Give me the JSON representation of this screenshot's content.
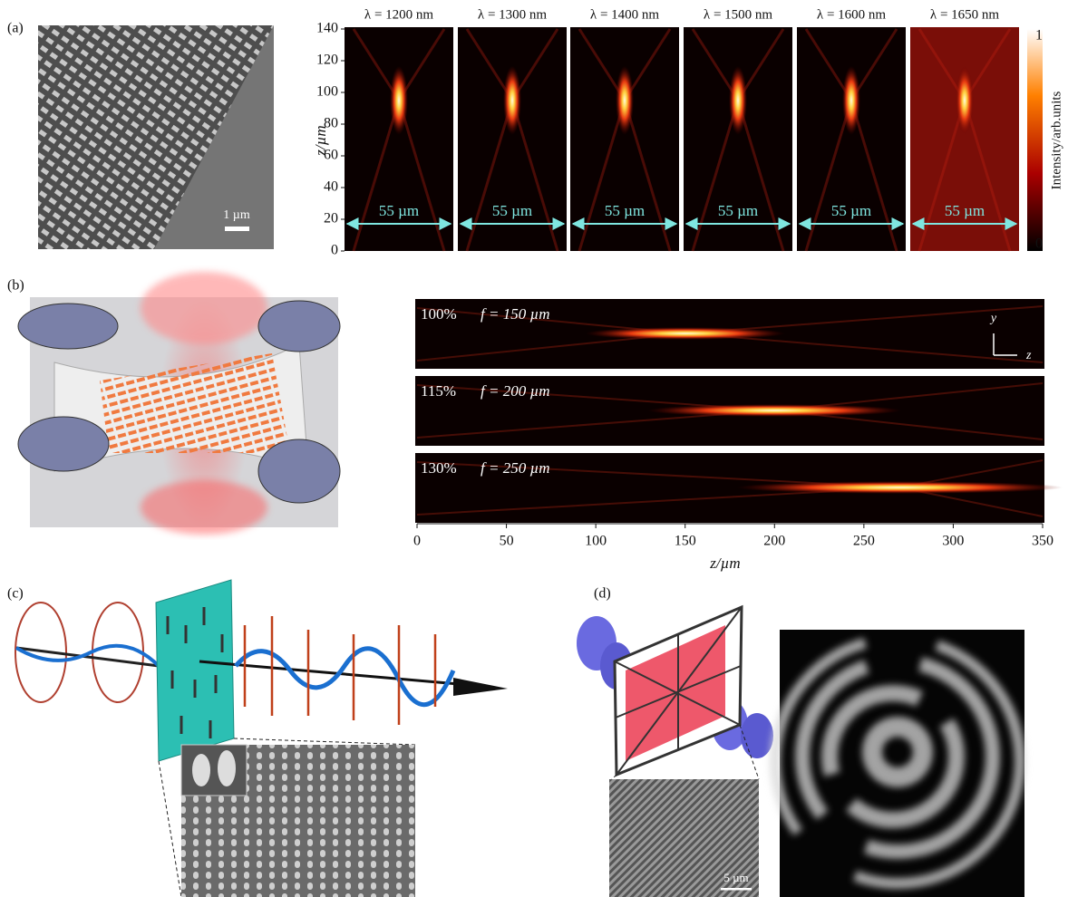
{
  "panel_a": {
    "label": "(a)",
    "scale_bar": "1 µm",
    "wavelengths": [
      "λ = 1200 nm",
      "λ = 1300 nm",
      "λ = 1400 nm",
      "λ = 1500 nm",
      "λ = 1600 nm",
      "λ = 1650 nm"
    ],
    "width_label": "55 µm",
    "y_axis": {
      "label": "z/µm",
      "ticks": [
        0,
        20,
        40,
        60,
        80,
        100,
        120,
        140
      ]
    },
    "colorbar": {
      "label": "Intensity/arb.units",
      "max": 1,
      "min": 0
    }
  },
  "panel_b": {
    "label": "(b)",
    "rows": [
      {
        "percent": "100%",
        "focal": "f = 150 µm"
      },
      {
        "percent": "115%",
        "focal": "f = 200 µm"
      },
      {
        "percent": "130%",
        "focal": "f = 250 µm"
      }
    ],
    "x_axis": {
      "label": "z/µm",
      "ticks": [
        0,
        50,
        100,
        150,
        200,
        250,
        300,
        350
      ]
    },
    "axis_y": "y",
    "axis_z": "z"
  },
  "panel_c": {
    "label": "(c)"
  },
  "panel_d": {
    "label": "(d)",
    "scale_bar": "5 µm"
  }
}
